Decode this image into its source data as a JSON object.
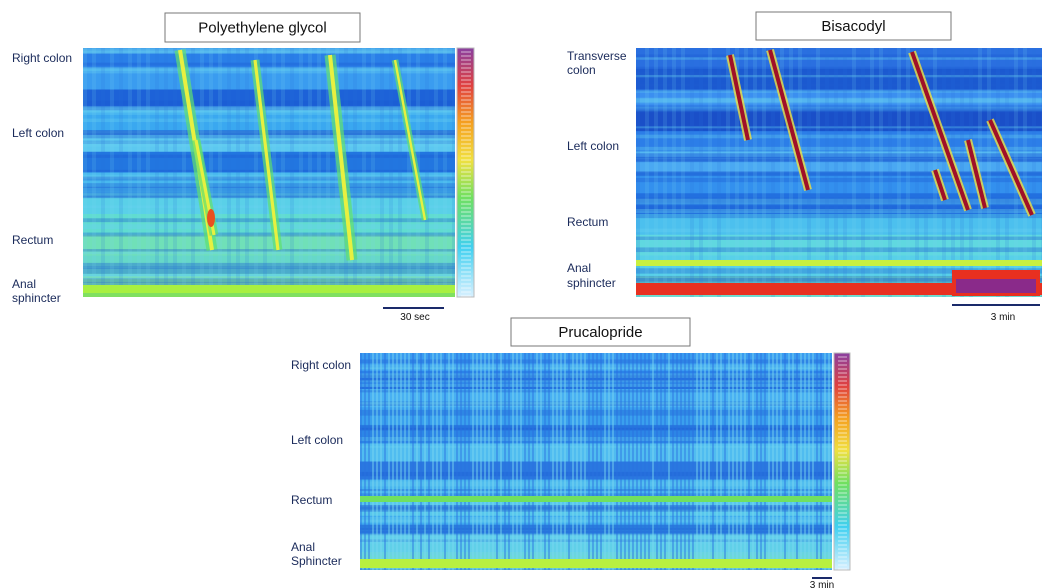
{
  "panels": [
    {
      "title": "Polyethylene glycol",
      "labels": [
        [
          "Right colon"
        ],
        [
          "Left colon"
        ],
        [
          "Rectum"
        ],
        [
          "Anal",
          "sphincter"
        ]
      ],
      "scale_bar": "30 sec"
    },
    {
      "title": "Bisacodyl",
      "labels": [
        [
          "Transverse",
          "colon"
        ],
        [
          "Left colon"
        ],
        [
          "Rectum"
        ],
        [
          "Anal",
          "sphincter"
        ]
      ],
      "scale_bar": "3 min"
    },
    {
      "title": "Prucalopride",
      "labels": [
        [
          "Right colon"
        ],
        [
          "Left colon"
        ],
        [
          "Rectum"
        ],
        [
          "Anal",
          "Sphincter"
        ]
      ],
      "scale_bar": "3 min"
    }
  ]
}
